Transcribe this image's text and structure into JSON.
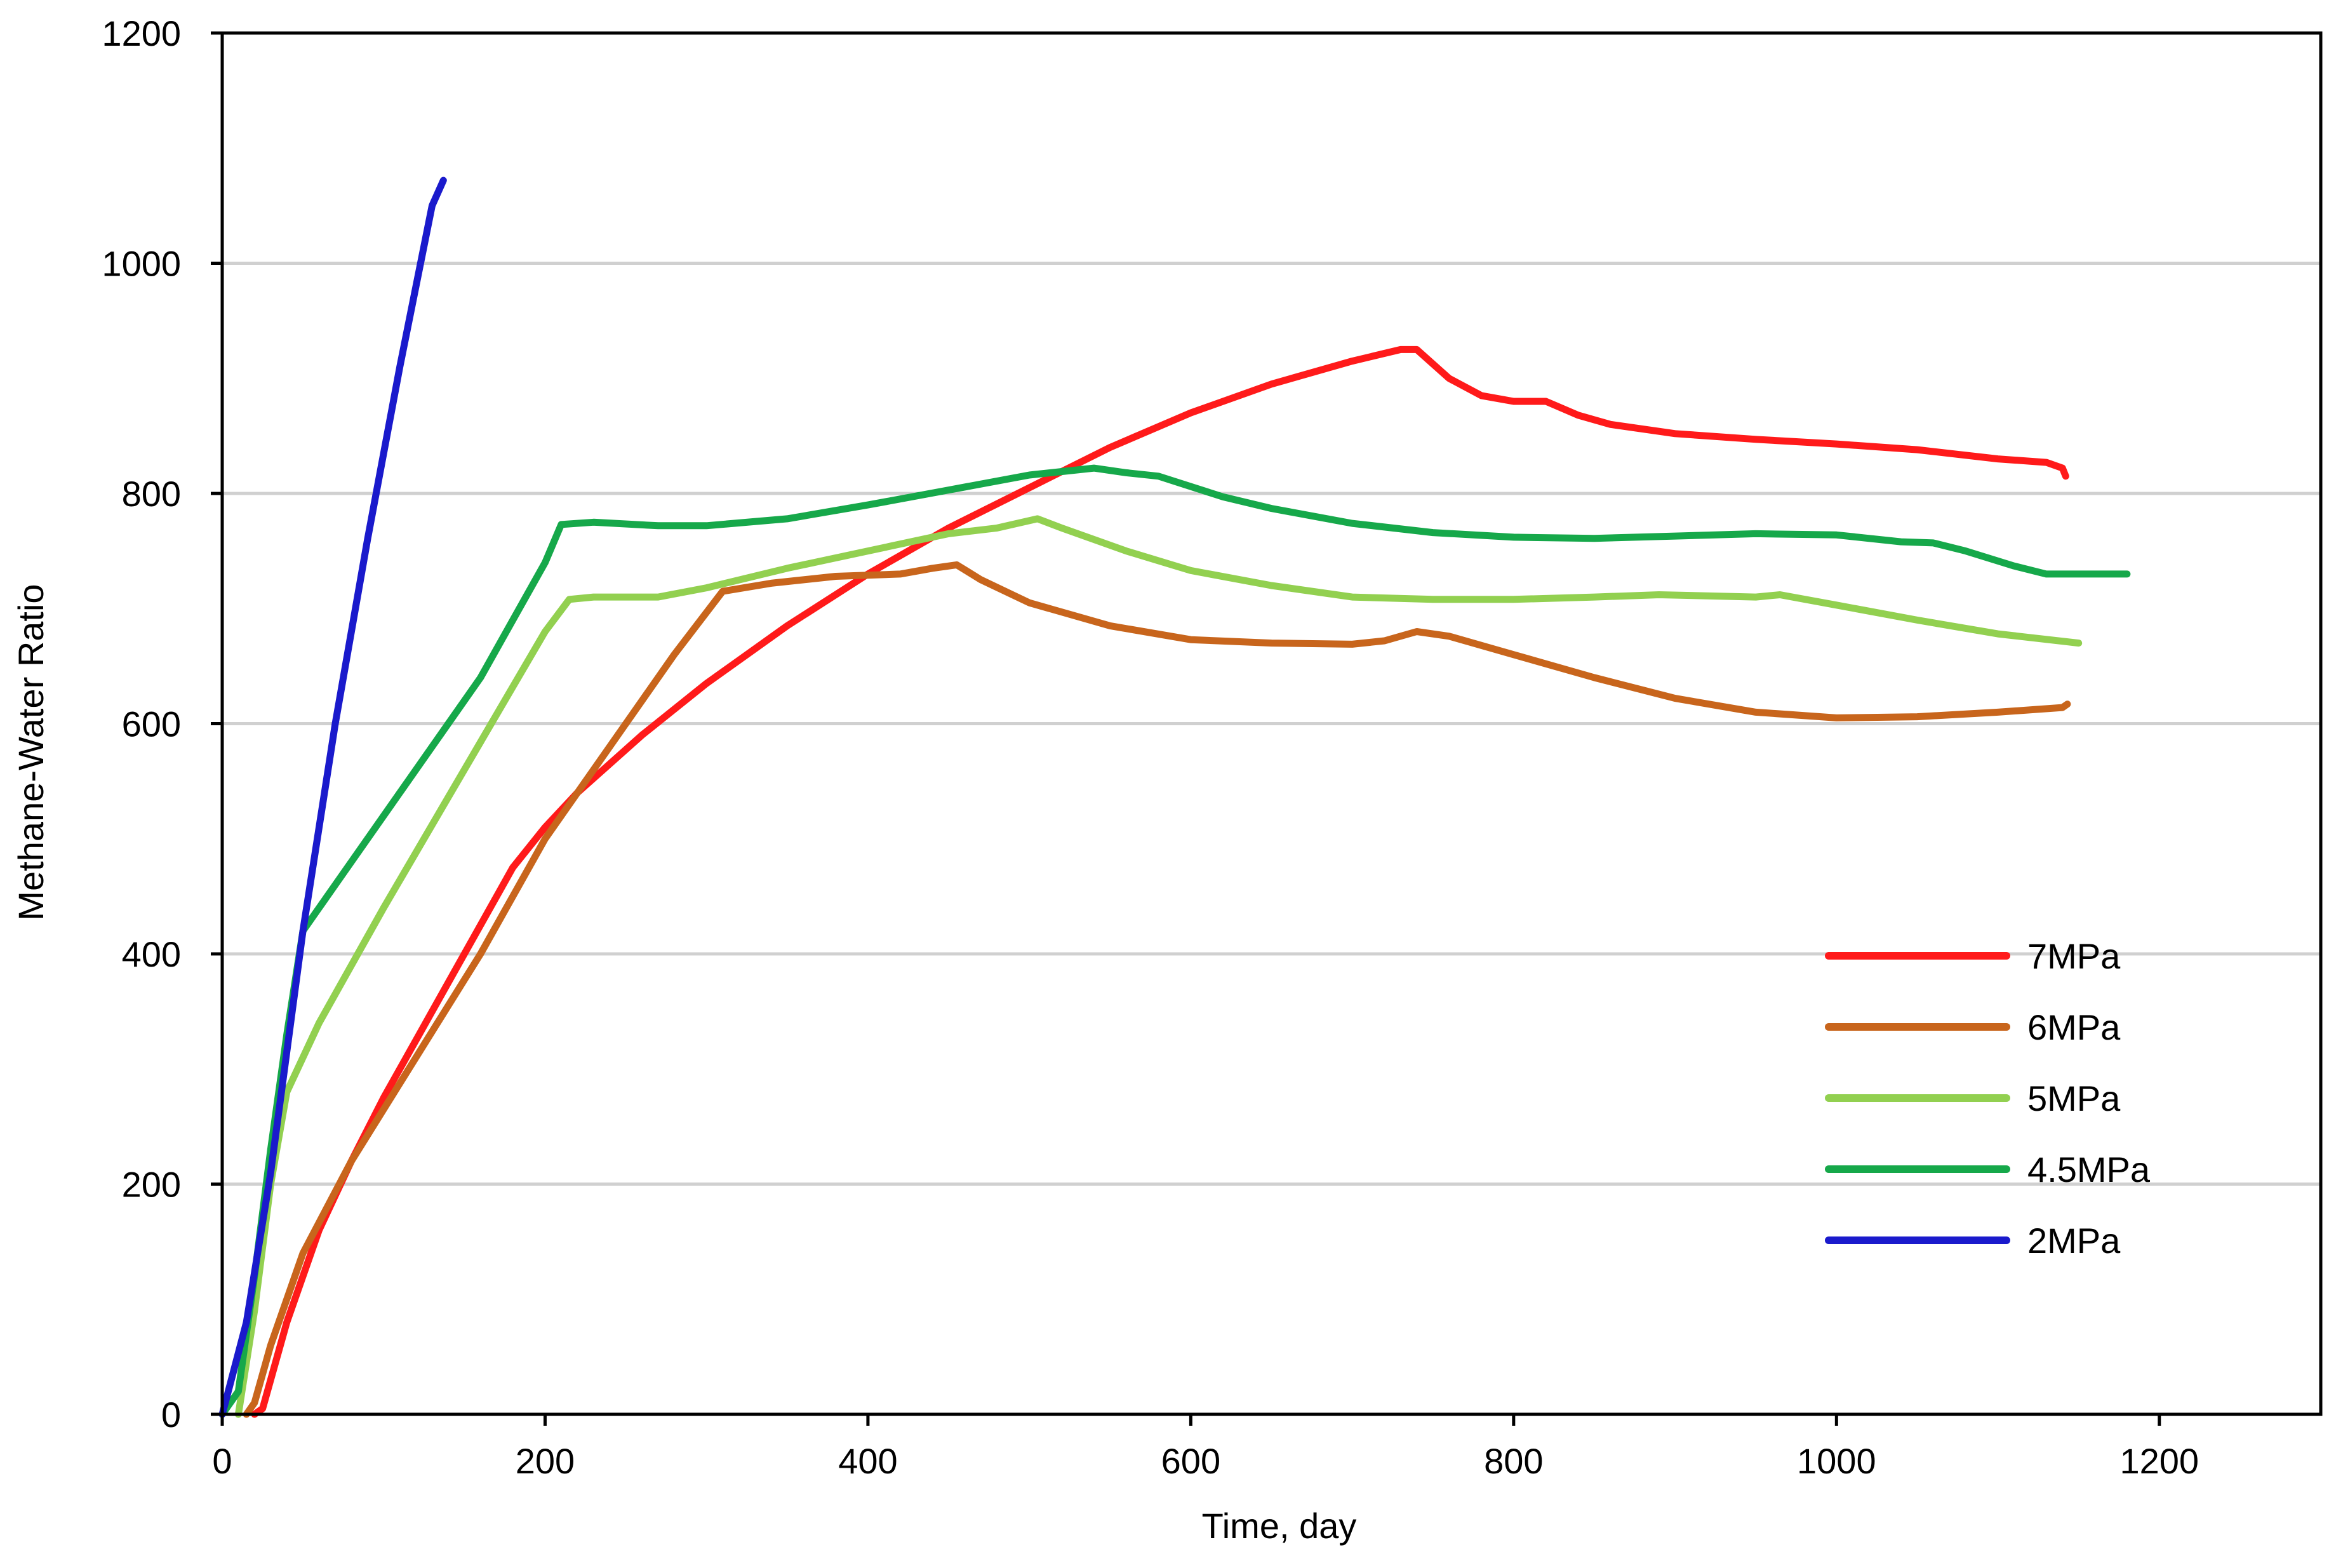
{
  "chart_data": {
    "type": "line",
    "title": "",
    "xlabel": "Time,  day",
    "ylabel": "Methane-Water Ratio",
    "xlim": [
      0,
      1300
    ],
    "ylim": [
      0,
      1200
    ],
    "xticks": [
      0,
      200,
      400,
      600,
      800,
      1000,
      1200
    ],
    "yticks": [
      0,
      200,
      400,
      600,
      800,
      1000,
      1200
    ],
    "grid": "horizontal",
    "legend_position": "bottom-right",
    "series": [
      {
        "name": "7MPa",
        "color": "#ff1a1a",
        "points": [
          [
            20,
            0
          ],
          [
            25,
            5
          ],
          [
            40,
            80
          ],
          [
            60,
            160
          ],
          [
            80,
            220
          ],
          [
            100,
            275
          ],
          [
            120,
            325
          ],
          [
            140,
            375
          ],
          [
            160,
            425
          ],
          [
            180,
            475
          ],
          [
            200,
            510
          ],
          [
            220,
            540
          ],
          [
            260,
            590
          ],
          [
            300,
            635
          ],
          [
            350,
            685
          ],
          [
            400,
            730
          ],
          [
            450,
            770
          ],
          [
            500,
            805
          ],
          [
            550,
            840
          ],
          [
            600,
            870
          ],
          [
            650,
            895
          ],
          [
            700,
            915
          ],
          [
            730,
            925
          ],
          [
            740,
            925
          ],
          [
            760,
            900
          ],
          [
            780,
            885
          ],
          [
            800,
            880
          ],
          [
            820,
            880
          ],
          [
            840,
            868
          ],
          [
            860,
            860
          ],
          [
            900,
            852
          ],
          [
            950,
            847
          ],
          [
            1000,
            843
          ],
          [
            1050,
            838
          ],
          [
            1100,
            830
          ],
          [
            1130,
            827
          ],
          [
            1140,
            822
          ],
          [
            1142,
            815
          ]
        ]
      },
      {
        "name": "6MPa",
        "color": "#c8651c",
        "points": [
          [
            15,
            0
          ],
          [
            20,
            10
          ],
          [
            30,
            60
          ],
          [
            50,
            140
          ],
          [
            80,
            220
          ],
          [
            120,
            310
          ],
          [
            160,
            400
          ],
          [
            200,
            500
          ],
          [
            240,
            580
          ],
          [
            280,
            660
          ],
          [
            310,
            715
          ],
          [
            340,
            722
          ],
          [
            380,
            728
          ],
          [
            420,
            730
          ],
          [
            440,
            735
          ],
          [
            455,
            738
          ],
          [
            470,
            725
          ],
          [
            500,
            705
          ],
          [
            550,
            685
          ],
          [
            600,
            673
          ],
          [
            650,
            670
          ],
          [
            700,
            669
          ],
          [
            720,
            672
          ],
          [
            740,
            680
          ],
          [
            760,
            676
          ],
          [
            800,
            660
          ],
          [
            850,
            640
          ],
          [
            900,
            622
          ],
          [
            950,
            610
          ],
          [
            1000,
            605
          ],
          [
            1050,
            606
          ],
          [
            1100,
            610
          ],
          [
            1140,
            614
          ],
          [
            1143,
            617
          ]
        ]
      },
      {
        "name": "5MPa",
        "color": "#92d050",
        "points": [
          [
            10,
            0
          ],
          [
            20,
            90
          ],
          [
            30,
            200
          ],
          [
            40,
            280
          ],
          [
            60,
            340
          ],
          [
            100,
            440
          ],
          [
            150,
            560
          ],
          [
            200,
            680
          ],
          [
            215,
            708
          ],
          [
            230,
            710
          ],
          [
            270,
            710
          ],
          [
            300,
            718
          ],
          [
            350,
            735
          ],
          [
            400,
            750
          ],
          [
            450,
            765
          ],
          [
            480,
            770
          ],
          [
            505,
            778
          ],
          [
            520,
            770
          ],
          [
            560,
            750
          ],
          [
            600,
            733
          ],
          [
            650,
            720
          ],
          [
            700,
            710
          ],
          [
            750,
            708
          ],
          [
            800,
            708
          ],
          [
            850,
            710
          ],
          [
            890,
            712
          ],
          [
            950,
            710
          ],
          [
            965,
            712
          ],
          [
            1000,
            703
          ],
          [
            1050,
            690
          ],
          [
            1100,
            678
          ],
          [
            1150,
            670
          ]
        ]
      },
      {
        "name": "4.5MPa",
        "color": "#16a84a",
        "points": [
          [
            0,
            0
          ],
          [
            10,
            20
          ],
          [
            20,
            120
          ],
          [
            30,
            230
          ],
          [
            40,
            330
          ],
          [
            50,
            420
          ],
          [
            80,
            480
          ],
          [
            120,
            560
          ],
          [
            160,
            640
          ],
          [
            200,
            740
          ],
          [
            210,
            773
          ],
          [
            230,
            775
          ],
          [
            270,
            772
          ],
          [
            300,
            772
          ],
          [
            350,
            778
          ],
          [
            400,
            790
          ],
          [
            450,
            803
          ],
          [
            500,
            816
          ],
          [
            540,
            822
          ],
          [
            560,
            818
          ],
          [
            580,
            815
          ],
          [
            620,
            797
          ],
          [
            650,
            787
          ],
          [
            700,
            774
          ],
          [
            750,
            766
          ],
          [
            800,
            762
          ],
          [
            850,
            761
          ],
          [
            900,
            763
          ],
          [
            950,
            765
          ],
          [
            1000,
            764
          ],
          [
            1040,
            758
          ],
          [
            1060,
            757
          ],
          [
            1080,
            750
          ],
          [
            1110,
            737
          ],
          [
            1130,
            730
          ],
          [
            1180,
            730
          ]
        ]
      },
      {
        "name": "2MPa",
        "color": "#1a1acc",
        "points": [
          [
            0,
            0
          ],
          [
            15,
            80
          ],
          [
            30,
            210
          ],
          [
            50,
            420
          ],
          [
            70,
            600
          ],
          [
            90,
            760
          ],
          [
            110,
            910
          ],
          [
            130,
            1050
          ],
          [
            137,
            1072
          ]
        ]
      }
    ]
  }
}
